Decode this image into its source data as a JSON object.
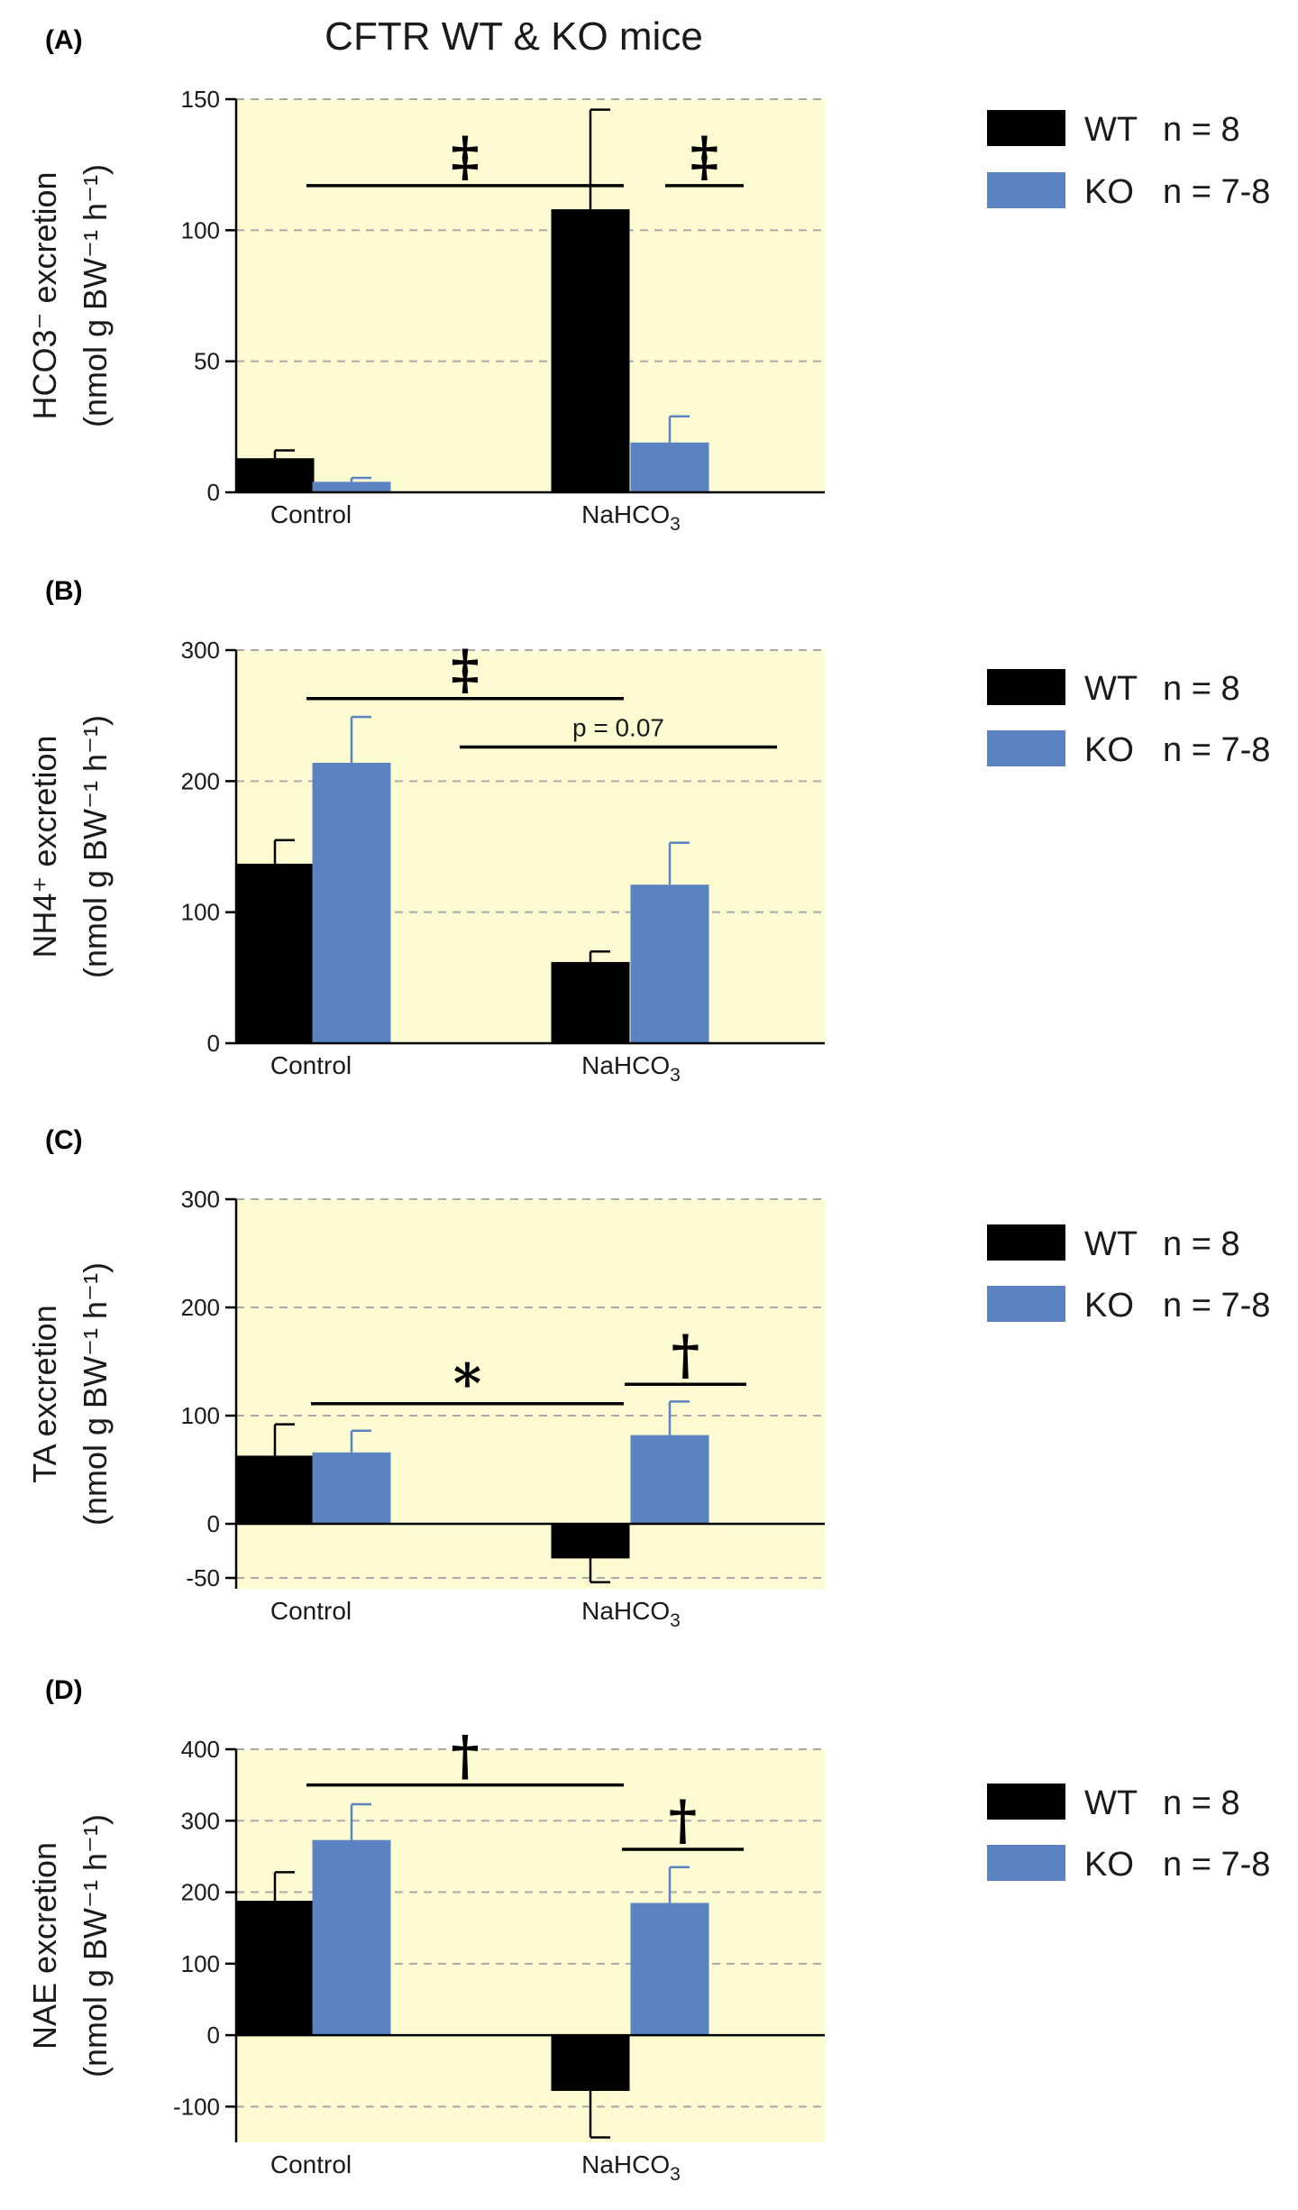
{
  "title": "CFTR WT & KO mice",
  "legend": {
    "entries": [
      {
        "label": "WT",
        "n": "n = 8",
        "color": "#000000"
      },
      {
        "label": "KO",
        "n": "n = 7-8",
        "color": "#5b83c1"
      }
    ]
  },
  "colors": {
    "background": "#fdfbd2",
    "wt": "#000000",
    "ko": "#5b83c1",
    "grid": "#a9a9a9"
  },
  "chart_data": [
    {
      "panel": "(A)",
      "type": "bar",
      "ylabel_line1": "HCO3⁻ excretion",
      "ylabel_line2": "(nmol g BW⁻¹ h⁻¹)",
      "categories": [
        "Control",
        "NaHCO3"
      ],
      "ylim": [
        0,
        150
      ],
      "yticks": [
        0,
        50,
        100,
        150
      ],
      "grid": true,
      "series": [
        {
          "name": "WT",
          "values": [
            13,
            108
          ],
          "errors": [
            3,
            38
          ]
        },
        {
          "name": "KO",
          "values": [
            4,
            19
          ],
          "errors": [
            1.5,
            10
          ]
        }
      ],
      "annotations": [
        {
          "text": "‡",
          "kind": "bracket",
          "from": "Control",
          "to": "NaHCO3 WT",
          "y": 117
        },
        {
          "text": "‡",
          "kind": "bracket",
          "from": "NaHCO3 WT",
          "to": "NaHCO3 KO",
          "y": 117
        }
      ]
    },
    {
      "panel": "(B)",
      "type": "bar",
      "ylabel_line1": "NH4⁺ excretion",
      "ylabel_line2": "(nmol g BW⁻¹ h⁻¹)",
      "categories": [
        "Control",
        "NaHCO3"
      ],
      "ylim": [
        0,
        300
      ],
      "yticks": [
        0,
        100,
        200,
        300
      ],
      "grid": true,
      "series": [
        {
          "name": "WT",
          "values": [
            137,
            62
          ],
          "errors": [
            18,
            8
          ]
        },
        {
          "name": "KO",
          "values": [
            214,
            121
          ],
          "errors": [
            35,
            32
          ]
        }
      ],
      "annotations": [
        {
          "text": "‡",
          "kind": "bracket",
          "from": "Control",
          "to": "NaHCO3 WT",
          "y": 263
        },
        {
          "text": "p = 0.07",
          "kind": "bracket",
          "from": "Control KO",
          "to": "NaHCO3 KO",
          "y": 226
        }
      ]
    },
    {
      "panel": "(C)",
      "type": "bar",
      "ylabel_line1": "TA excretion",
      "ylabel_line2": "(nmol g BW⁻¹ h⁻¹)",
      "categories": [
        "Control",
        "NaHCO3"
      ],
      "ylim": [
        -60,
        300
      ],
      "yticks": [
        -50,
        0,
        100,
        200,
        300
      ],
      "grid": true,
      "series": [
        {
          "name": "WT",
          "values": [
            63,
            -32
          ],
          "errors": [
            29,
            22
          ]
        },
        {
          "name": "KO",
          "values": [
            66,
            82
          ],
          "errors": [
            20,
            31
          ]
        }
      ],
      "annotations": [
        {
          "text": "*",
          "kind": "bracket",
          "from": "Control",
          "to": "NaHCO3 WT",
          "y": 111
        },
        {
          "text": "†",
          "kind": "bracket",
          "from": "NaHCO3 WT",
          "to": "NaHCO3 KO",
          "y": 129
        }
      ]
    },
    {
      "panel": "(D)",
      "type": "bar",
      "ylabel_line1": "NAE excretion",
      "ylabel_line2": "(nmol g BW⁻¹ h⁻¹)",
      "categories": [
        "Control",
        "NaHCO3"
      ],
      "ylim": [
        -150,
        400
      ],
      "yticks": [
        -100,
        0,
        100,
        200,
        300,
        400
      ],
      "grid": true,
      "series": [
        {
          "name": "WT",
          "values": [
            188,
            -78
          ],
          "errors": [
            40,
            65
          ]
        },
        {
          "name": "KO",
          "values": [
            273,
            185
          ],
          "errors": [
            50,
            50
          ]
        }
      ],
      "annotations": [
        {
          "text": "†",
          "kind": "bracket",
          "from": "Control",
          "to": "NaHCO3 WT",
          "y": 350
        },
        {
          "text": "†",
          "kind": "bracket",
          "from": "NaHCO3 WT",
          "to": "NaHCO3 KO",
          "y": 260
        }
      ]
    }
  ]
}
